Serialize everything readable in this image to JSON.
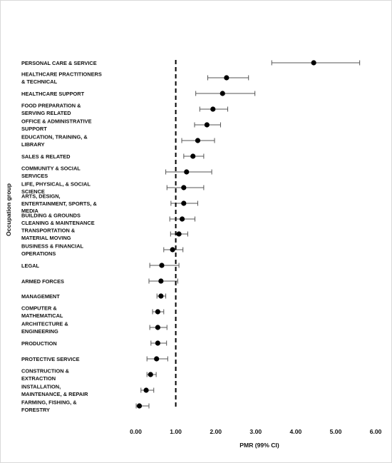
{
  "chart_data": {
    "type": "forest",
    "xlabel": "PMR (99% CI)",
    "ylabel": "Occupation group",
    "xlim": [
      0,
      6
    ],
    "xticks": [
      "0.00",
      "1.00",
      "2.00",
      "3.00",
      "4.00",
      "5.00",
      "6.00"
    ],
    "reference_line": 1.0,
    "categories": [
      [
        "PERSONAL CARE & SERVICE"
      ],
      [
        "HEALTHCARE PRACTITIONERS",
        "& TECHNICAL"
      ],
      [
        "HEALTHCARE SUPPORT"
      ],
      [
        "FOOD PREPARATION &",
        "SERVING RELATED"
      ],
      [
        "OFFICE & ADMINISTRATIVE",
        "SUPPORT"
      ],
      [
        "EDUCATION, TRAINING, &",
        "LIBRARY"
      ],
      [
        "SALES & RELATED"
      ],
      [
        "COMMUNITY & SOCIAL",
        "SERVICES"
      ],
      [
        "LIFE, PHYSICAL, & SOCIAL",
        "SCIENCE"
      ],
      [
        "ARTS, DESIGN,",
        "ENTERTAINMENT, SPORTS, &",
        "MEDIA"
      ],
      [
        "BUILDING & GROUNDS",
        "CLEANING & MAINTENANCE"
      ],
      [
        "TRANSPORTATION &",
        "MATERIAL MOVING"
      ],
      [
        "BUSINESS & FINANCIAL",
        "OPERATIONS"
      ],
      [
        "LEGAL"
      ],
      [
        "ARMED FORCES"
      ],
      [
        "MANAGEMENT"
      ],
      [
        "COMPUTER &",
        "MATHEMATICAL"
      ],
      [
        "ARCHITECTURE &",
        "ENGINEERING"
      ],
      [
        "PRODUCTION"
      ],
      [
        "PROTECTIVE SERVICE"
      ],
      [
        "CONSTRUCTION &",
        "EXTRACTION"
      ],
      [
        "INSTALLATION,",
        "MAINTENANCE, & REPAIR"
      ],
      [
        "FARMING, FISHING, &",
        "FORESTRY"
      ]
    ],
    "pmr": [
      4.45,
      2.27,
      2.17,
      1.93,
      1.78,
      1.55,
      1.43,
      1.27,
      1.2,
      1.2,
      1.16,
      1.08,
      0.92,
      0.65,
      0.63,
      0.63,
      0.55,
      0.55,
      0.55,
      0.52,
      0.37,
      0.26,
      0.09
    ],
    "ci_low": [
      3.4,
      1.8,
      1.5,
      1.6,
      1.47,
      1.15,
      1.2,
      0.75,
      0.78,
      0.88,
      0.85,
      0.87,
      0.7,
      0.35,
      0.33,
      0.53,
      0.42,
      0.35,
      0.38,
      0.28,
      0.28,
      0.13,
      0.01
    ],
    "ci_high": [
      5.6,
      2.82,
      2.98,
      2.3,
      2.12,
      1.97,
      1.7,
      1.9,
      1.7,
      1.55,
      1.48,
      1.3,
      1.18,
      1.08,
      1.05,
      0.75,
      0.7,
      0.78,
      0.77,
      0.8,
      0.51,
      0.45,
      0.33
    ]
  }
}
